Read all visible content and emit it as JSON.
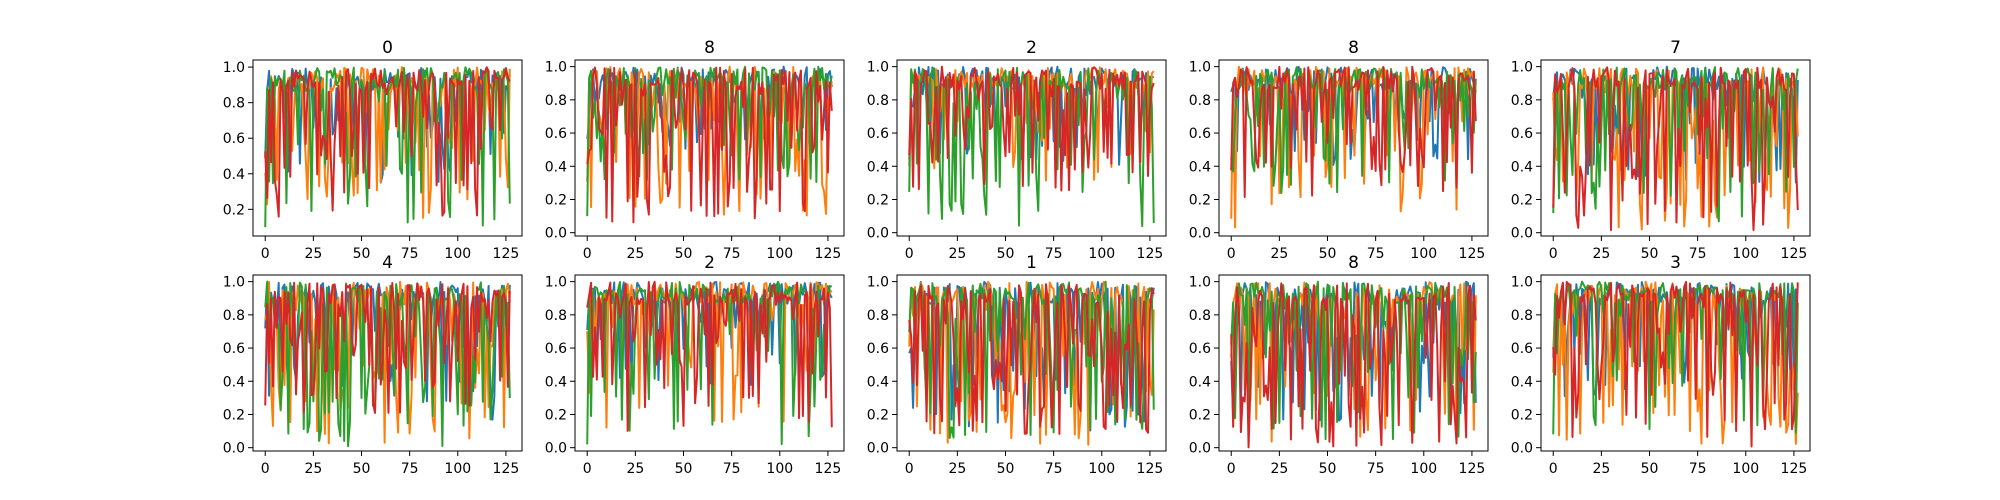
{
  "chart_data": [
    {
      "type": "line",
      "title": "0",
      "x_range": [
        0,
        127
      ],
      "ylim": [
        0.05,
        1.04
      ],
      "y_ticks": [
        0.2,
        0.4,
        0.6,
        0.8,
        1.0
      ],
      "y_tick_labels": [
        "0.2",
        "0.4",
        "0.6",
        "0.8",
        "1.0"
      ],
      "x_ticks": [
        0,
        25,
        50,
        75,
        100,
        125
      ],
      "x_tick_labels": [
        "0",
        "25",
        "50",
        "75",
        "100",
        "125"
      ],
      "series": [
        {
          "color": "#1f77b4",
          "floor": 0.35,
          "dip_rate": 0.35,
          "seed": 11
        },
        {
          "color": "#ff7f0e",
          "floor": 0.15,
          "dip_rate": 0.4,
          "seed": 12
        },
        {
          "color": "#2ca02c",
          "floor": 0.1,
          "dip_rate": 0.25,
          "seed": 13,
          "start": 0.1
        },
        {
          "color": "#d62728",
          "floor": 0.13,
          "dip_rate": 0.45,
          "seed": 14
        }
      ]
    },
    {
      "type": "line",
      "title": "8",
      "x_range": [
        0,
        127
      ],
      "ylim": [
        -0.02,
        1.04
      ],
      "y_ticks": [
        0.0,
        0.2,
        0.4,
        0.6,
        0.8,
        1.0
      ],
      "y_tick_labels": [
        "0.0",
        "0.2",
        "0.4",
        "0.6",
        "0.8",
        "1.0"
      ],
      "x_ticks": [
        0,
        25,
        50,
        75,
        100,
        125
      ],
      "x_tick_labels": [
        "0",
        "25",
        "50",
        "75",
        "100",
        "125"
      ],
      "series": [
        {
          "color": "#1f77b4",
          "floor": 0.5,
          "dip_rate": 0.3,
          "seed": 21
        },
        {
          "color": "#ff7f0e",
          "floor": 0.1,
          "dip_rate": 0.4,
          "seed": 22
        },
        {
          "color": "#2ca02c",
          "floor": 0.3,
          "dip_rate": 0.3,
          "seed": 23,
          "start": 0.1
        },
        {
          "color": "#d62728",
          "floor": 0.05,
          "dip_rate": 0.5,
          "seed": 24
        }
      ]
    },
    {
      "type": "line",
      "title": "2",
      "x_range": [
        0,
        127
      ],
      "ylim": [
        -0.02,
        1.04
      ],
      "y_ticks": [
        0.0,
        0.2,
        0.4,
        0.6,
        0.8,
        1.0
      ],
      "y_tick_labels": [
        "0.0",
        "0.2",
        "0.4",
        "0.6",
        "0.8",
        "1.0"
      ],
      "x_ticks": [
        0,
        25,
        50,
        75,
        100,
        125
      ],
      "x_tick_labels": [
        "0",
        "25",
        "50",
        "75",
        "100",
        "125"
      ],
      "series": [
        {
          "color": "#1f77b4",
          "floor": 0.4,
          "dip_rate": 0.3,
          "seed": 31
        },
        {
          "color": "#ff7f0e",
          "floor": 0.3,
          "dip_rate": 0.3,
          "seed": 32
        },
        {
          "color": "#2ca02c",
          "floor": 0.02,
          "dip_rate": 0.35,
          "seed": 33
        },
        {
          "color": "#d62728",
          "floor": 0.25,
          "dip_rate": 0.45,
          "seed": 34
        }
      ]
    },
    {
      "type": "line",
      "title": "8",
      "x_range": [
        0,
        127
      ],
      "ylim": [
        -0.02,
        1.04
      ],
      "y_ticks": [
        0.0,
        0.2,
        0.4,
        0.6,
        0.8,
        1.0
      ],
      "y_tick_labels": [
        "0.0",
        "0.2",
        "0.4",
        "0.6",
        "0.8",
        "1.0"
      ],
      "x_ticks": [
        0,
        25,
        50,
        75,
        100,
        125
      ],
      "x_tick_labels": [
        "0",
        "25",
        "50",
        "75",
        "100",
        "125"
      ],
      "series": [
        {
          "color": "#1f77b4",
          "floor": 0.4,
          "dip_rate": 0.3,
          "seed": 41
        },
        {
          "color": "#ff7f0e",
          "floor": 0.01,
          "dip_rate": 0.4,
          "seed": 42
        },
        {
          "color": "#2ca02c",
          "floor": 0.2,
          "dip_rate": 0.3,
          "seed": 43,
          "start": 0.45
        },
        {
          "color": "#d62728",
          "floor": 0.2,
          "dip_rate": 0.4,
          "seed": 44
        }
      ]
    },
    {
      "type": "line",
      "title": "7",
      "x_range": [
        0,
        127
      ],
      "ylim": [
        -0.02,
        1.04
      ],
      "y_ticks": [
        0.0,
        0.2,
        0.4,
        0.6,
        0.8,
        1.0
      ],
      "y_tick_labels": [
        "0.0",
        "0.2",
        "0.4",
        "0.6",
        "0.8",
        "1.0"
      ],
      "x_ticks": [
        0,
        25,
        50,
        75,
        100,
        125
      ],
      "x_tick_labels": [
        "0",
        "25",
        "50",
        "75",
        "100",
        "125"
      ],
      "series": [
        {
          "color": "#1f77b4",
          "floor": 0.3,
          "dip_rate": 0.35,
          "seed": 51
        },
        {
          "color": "#ff7f0e",
          "floor": 0.02,
          "dip_rate": 0.45,
          "seed": 52
        },
        {
          "color": "#2ca02c",
          "floor": 0.05,
          "dip_rate": 0.35,
          "seed": 53
        },
        {
          "color": "#d62728",
          "floor": 0.0,
          "dip_rate": 0.5,
          "seed": 54
        }
      ]
    },
    {
      "type": "line",
      "title": "4",
      "x_range": [
        0,
        127
      ],
      "ylim": [
        -0.02,
        1.04
      ],
      "y_ticks": [
        0.0,
        0.2,
        0.4,
        0.6,
        0.8,
        1.0
      ],
      "y_tick_labels": [
        "0.0",
        "0.2",
        "0.4",
        "0.6",
        "0.8",
        "1.0"
      ],
      "x_ticks": [
        0,
        25,
        50,
        75,
        100,
        125
      ],
      "x_tick_labels": [
        "0",
        "25",
        "50",
        "75",
        "100",
        "125"
      ],
      "series": [
        {
          "color": "#1f77b4",
          "floor": 0.15,
          "dip_rate": 0.4,
          "seed": 61
        },
        {
          "color": "#ff7f0e",
          "floor": 0.01,
          "dip_rate": 0.45,
          "seed": 62
        },
        {
          "color": "#2ca02c",
          "floor": 0.0,
          "dip_rate": 0.45,
          "seed": 63
        },
        {
          "color": "#d62728",
          "floor": 0.2,
          "dip_rate": 0.5,
          "seed": 64
        }
      ]
    },
    {
      "type": "line",
      "title": "2",
      "x_range": [
        0,
        127
      ],
      "ylim": [
        -0.02,
        1.04
      ],
      "y_ticks": [
        0.0,
        0.2,
        0.4,
        0.6,
        0.8,
        1.0
      ],
      "y_tick_labels": [
        "0.0",
        "0.2",
        "0.4",
        "0.6",
        "0.8",
        "1.0"
      ],
      "x_ticks": [
        0,
        25,
        50,
        75,
        100,
        125
      ],
      "x_tick_labels": [
        "0",
        "25",
        "50",
        "75",
        "100",
        "125"
      ],
      "series": [
        {
          "color": "#1f77b4",
          "floor": 0.35,
          "dip_rate": 0.3,
          "seed": 71
        },
        {
          "color": "#ff7f0e",
          "floor": 0.07,
          "dip_rate": 0.3,
          "seed": 72
        },
        {
          "color": "#2ca02c",
          "floor": 0.02,
          "dip_rate": 0.3,
          "seed": 73,
          "start": 0.02
        },
        {
          "color": "#d62728",
          "floor": 0.1,
          "dip_rate": 0.4,
          "seed": 74
        }
      ]
    },
    {
      "type": "line",
      "title": "1",
      "x_range": [
        0,
        127
      ],
      "ylim": [
        -0.02,
        1.04
      ],
      "y_ticks": [
        0.0,
        0.2,
        0.4,
        0.6,
        0.8,
        1.0
      ],
      "y_tick_labels": [
        "0.0",
        "0.2",
        "0.4",
        "0.6",
        "0.8",
        "1.0"
      ],
      "x_ticks": [
        0,
        25,
        50,
        75,
        100,
        125
      ],
      "x_tick_labels": [
        "0",
        "25",
        "50",
        "75",
        "100",
        "125"
      ],
      "series": [
        {
          "color": "#1f77b4",
          "floor": 0.1,
          "dip_rate": 0.45,
          "seed": 81
        },
        {
          "color": "#ff7f0e",
          "floor": 0.0,
          "dip_rate": 0.45,
          "seed": 82
        },
        {
          "color": "#2ca02c",
          "floor": 0.05,
          "dip_rate": 0.45,
          "seed": 83
        },
        {
          "color": "#d62728",
          "floor": 0.05,
          "dip_rate": 0.55,
          "seed": 84
        }
      ]
    },
    {
      "type": "line",
      "title": "8",
      "x_range": [
        0,
        127
      ],
      "ylim": [
        -0.02,
        1.04
      ],
      "y_ticks": [
        0.0,
        0.2,
        0.4,
        0.6,
        0.8,
        1.0
      ],
      "y_tick_labels": [
        "0.0",
        "0.2",
        "0.4",
        "0.6",
        "0.8",
        "1.0"
      ],
      "x_ticks": [
        0,
        25,
        50,
        75,
        100,
        125
      ],
      "x_tick_labels": [
        "0",
        "25",
        "50",
        "75",
        "100",
        "125"
      ],
      "series": [
        {
          "color": "#1f77b4",
          "floor": 0.15,
          "dip_rate": 0.4,
          "seed": 91
        },
        {
          "color": "#ff7f0e",
          "floor": 0.02,
          "dip_rate": 0.45,
          "seed": 92
        },
        {
          "color": "#2ca02c",
          "floor": 0.05,
          "dip_rate": 0.45,
          "seed": 93
        },
        {
          "color": "#d62728",
          "floor": 0.0,
          "dip_rate": 0.55,
          "seed": 94
        }
      ]
    },
    {
      "type": "line",
      "title": "3",
      "x_range": [
        0,
        127
      ],
      "ylim": [
        -0.02,
        1.04
      ],
      "y_ticks": [
        0.0,
        0.2,
        0.4,
        0.6,
        0.8,
        1.0
      ],
      "y_tick_labels": [
        "0.0",
        "0.2",
        "0.4",
        "0.6",
        "0.8",
        "1.0"
      ],
      "x_ticks": [
        0,
        25,
        50,
        75,
        100,
        125
      ],
      "x_tick_labels": [
        "0",
        "25",
        "50",
        "75",
        "100",
        "125"
      ],
      "series": [
        {
          "color": "#1f77b4",
          "floor": 0.3,
          "dip_rate": 0.3,
          "seed": 101
        },
        {
          "color": "#ff7f0e",
          "floor": 0.0,
          "dip_rate": 0.35,
          "seed": 102,
          "tail_low": true
        },
        {
          "color": "#2ca02c",
          "floor": 0.08,
          "dip_rate": 0.3,
          "seed": 103,
          "start": 0.08
        },
        {
          "color": "#d62728",
          "floor": 0.0,
          "dip_rate": 0.4,
          "seed": 104,
          "tail_low": true
        }
      ]
    }
  ]
}
